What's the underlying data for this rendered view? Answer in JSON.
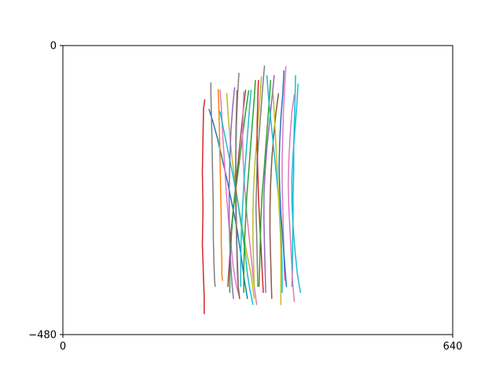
{
  "chart_data": {
    "type": "line",
    "title": "",
    "xlabel": "",
    "ylabel": "",
    "xlim": [
      0,
      640
    ],
    "ylim": [
      -480,
      0
    ],
    "x_ticks": [
      {
        "value": 0,
        "label": "0"
      },
      {
        "value": 640,
        "label": "640"
      }
    ],
    "y_ticks": [
      {
        "value": 0,
        "label": "0"
      },
      {
        "value": -480,
        "label": "−480"
      }
    ],
    "grid": false,
    "legend": "none",
    "series": [
      {
        "color": "#d62728",
        "x": [
          233,
          231,
          230,
          229,
          230,
          229,
          230,
          231,
          232,
          232
        ],
        "y": [
          -90,
          -105,
          -150,
          -210,
          -270,
          -330,
          -360,
          -390,
          -415,
          -445
        ]
      },
      {
        "color": "#1f77b4",
        "x": [
          240,
          246,
          254,
          262,
          270,
          278,
          286,
          292,
          298,
          303
        ],
        "y": [
          -106,
          -125,
          -155,
          -190,
          -225,
          -265,
          -305,
          -345,
          -390,
          -420
        ]
      },
      {
        "color": "#7f7f7f",
        "x": [
          243,
          243,
          244,
          245,
          246,
          247,
          247,
          248,
          249,
          250
        ],
        "y": [
          -62,
          -80,
          -120,
          -170,
          -220,
          -270,
          -320,
          -360,
          -390,
          -400
        ]
      },
      {
        "color": "#ff7f0e",
        "x": [
          255,
          256,
          257,
          258,
          259,
          260,
          260,
          261,
          261,
          262
        ],
        "y": [
          -73,
          -100,
          -140,
          -190,
          -240,
          -290,
          -330,
          -360,
          -380,
          -390
        ]
      },
      {
        "color": "#e377c2",
        "x": [
          258,
          260,
          262,
          265,
          268,
          272,
          276,
          280,
          285,
          290
        ],
        "y": [
          -74,
          -100,
          -140,
          -190,
          -240,
          -290,
          -330,
          -370,
          -400,
          -418
        ]
      },
      {
        "color": "#8c564b",
        "x": [
          300,
          296,
          292,
          288,
          284,
          280,
          276,
          274,
          272,
          271
        ],
        "y": [
          -74,
          -110,
          -150,
          -190,
          -230,
          -270,
          -310,
          -350,
          -380,
          -400
        ]
      },
      {
        "color": "#2ca02c",
        "x": [
          305,
          300,
          295,
          290,
          285,
          280,
          277,
          275,
          274,
          274
        ],
        "y": [
          -75,
          -110,
          -150,
          -190,
          -230,
          -270,
          -310,
          -350,
          -380,
          -410
        ]
      },
      {
        "color": "#bcbd22",
        "x": [
          269,
          271,
          274,
          278,
          283,
          289,
          296,
          303,
          309,
          314
        ],
        "y": [
          -80,
          -110,
          -150,
          -190,
          -230,
          -270,
          -310,
          -350,
          -380,
          -420
        ]
      },
      {
        "color": "#17becf",
        "x": [
          258,
          264,
          272,
          280,
          287,
          293,
          299,
          303,
          307,
          312
        ],
        "y": [
          -110,
          -140,
          -180,
          -220,
          -260,
          -300,
          -340,
          -380,
          -405,
          -430
        ]
      },
      {
        "color": "#9467bd",
        "x": [
          282,
          279,
          276,
          274,
          273,
          273,
          274,
          276,
          278,
          280
        ],
        "y": [
          -70,
          -100,
          -140,
          -190,
          -240,
          -290,
          -330,
          -370,
          -400,
          -420
        ]
      },
      {
        "color": "#8c564b",
        "x": [
          286,
          285,
          284,
          284,
          284,
          285,
          286,
          287,
          288,
          290
        ],
        "y": [
          -75,
          -110,
          -150,
          -200,
          -250,
          -300,
          -340,
          -370,
          -400,
          -420
        ]
      },
      {
        "color": "#7f7f7f",
        "x": [
          289,
          287,
          285,
          284,
          283,
          284,
          285,
          286,
          287,
          288
        ],
        "y": [
          -46,
          -80,
          -130,
          -180,
          -230,
          -280,
          -320,
          -360,
          -390,
          -410
        ]
      },
      {
        "color": "#e377c2",
        "x": [
          297,
          296,
          295,
          296,
          298,
          301,
          305,
          309,
          313,
          318
        ],
        "y": [
          -77,
          -110,
          -150,
          -190,
          -230,
          -270,
          -310,
          -350,
          -390,
          -430
        ]
      },
      {
        "color": "#17becf",
        "x": [
          309,
          306,
          303,
          300,
          297,
          295,
          293,
          292,
          292,
          292
        ],
        "y": [
          -74,
          -110,
          -150,
          -190,
          -230,
          -270,
          -310,
          -350,
          -380,
          -400
        ]
      },
      {
        "color": "#2ca02c",
        "x": [
          316,
          314,
          311,
          308,
          305,
          302,
          300,
          298,
          297,
          297
        ],
        "y": [
          -58,
          -90,
          -130,
          -170,
          -210,
          -250,
          -290,
          -330,
          -370,
          -410
        ]
      },
      {
        "color": "#bcbd22",
        "x": [
          326,
          324,
          321,
          318,
          315,
          313,
          312,
          312,
          313,
          314
        ],
        "y": [
          -52,
          -80,
          -120,
          -160,
          -200,
          -240,
          -280,
          -320,
          -360,
          -400
        ]
      },
      {
        "color": "#7f7f7f",
        "x": [
          331,
          328,
          325,
          322,
          319,
          318,
          317,
          318,
          319,
          320
        ],
        "y": [
          -34,
          -70,
          -110,
          -150,
          -190,
          -230,
          -270,
          -310,
          -350,
          -400
        ]
      },
      {
        "color": "#d62728",
        "x": [
          321,
          320,
          319,
          319,
          320,
          321,
          323,
          325,
          327,
          329
        ],
        "y": [
          -58,
          -90,
          -130,
          -170,
          -210,
          -250,
          -290,
          -330,
          -370,
          -410
        ]
      },
      {
        "color": "#2ca02c",
        "x": [
          341,
          339,
          336,
          333,
          330,
          327,
          325,
          324,
          323,
          322
        ],
        "y": [
          -58,
          -90,
          -130,
          -170,
          -210,
          -250,
          -290,
          -330,
          -370,
          -400
        ]
      },
      {
        "color": "#9467bd",
        "x": [
          347,
          343,
          339,
          335,
          332,
          330,
          330,
          331,
          332,
          333
        ],
        "y": [
          -50,
          -90,
          -130,
          -170,
          -210,
          -250,
          -290,
          -330,
          -370,
          -410
        ]
      },
      {
        "color": "#8c564b",
        "x": [
          354,
          350,
          346,
          343,
          341,
          340,
          340,
          341,
          342,
          343
        ],
        "y": [
          -80,
          -110,
          -150,
          -190,
          -230,
          -270,
          -310,
          -350,
          -390,
          -420
        ]
      },
      {
        "color": "#17becf",
        "x": [
          335,
          338,
          342,
          346,
          350,
          354,
          357,
          359,
          360,
          360
        ],
        "y": [
          -50,
          -90,
          -130,
          -170,
          -210,
          -250,
          -290,
          -330,
          -370,
          -410
        ]
      },
      {
        "color": "#bcbd22",
        "x": [
          345,
          347,
          349,
          351,
          353,
          355,
          357,
          358,
          358,
          358
        ],
        "y": [
          -78,
          -110,
          -150,
          -190,
          -230,
          -270,
          -310,
          -350,
          -390,
          -430
        ]
      },
      {
        "color": "#e377c2",
        "x": [
          366,
          364,
          362,
          361,
          360,
          360,
          361,
          362,
          363,
          364
        ],
        "y": [
          -35,
          -70,
          -110,
          -150,
          -190,
          -230,
          -270,
          -310,
          -350,
          -390
        ]
      },
      {
        "color": "#1f77b4",
        "x": [
          363,
          361,
          358,
          356,
          355,
          356,
          358,
          361,
          364,
          367
        ],
        "y": [
          -42,
          -80,
          -120,
          -160,
          -200,
          -240,
          -280,
          -320,
          -360,
          -400
        ]
      },
      {
        "color": "#17becf",
        "x": [
          382,
          381,
          380,
          379,
          379,
          378,
          378,
          377,
          377,
          376
        ],
        "y": [
          -50,
          -90,
          -130,
          -170,
          -210,
          -250,
          -290,
          -330,
          -370,
          -400
        ]
      },
      {
        "color": "#e377c2",
        "x": [
          380,
          376,
          373,
          371,
          370,
          371,
          373,
          375,
          377,
          380
        ],
        "y": [
          -82,
          -110,
          -150,
          -190,
          -230,
          -270,
          -310,
          -350,
          -390,
          -425
        ]
      },
      {
        "color": "#17becf",
        "x": [
          386,
          384,
          381,
          378,
          376,
          376,
          378,
          381,
          385,
          390
        ],
        "y": [
          -64,
          -100,
          -140,
          -180,
          -220,
          -260,
          -300,
          -340,
          -380,
          -410
        ]
      }
    ]
  }
}
